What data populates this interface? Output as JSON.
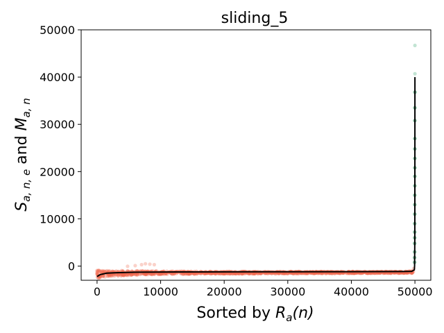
{
  "chart_data": {
    "type": "scatter",
    "title": "sliding_5",
    "xlabel": {
      "prefix": "Sorted by ",
      "R": "R",
      "sub": "a",
      "args": "(n)"
    },
    "ylabel": {
      "S": "S",
      "s_sub": "a, n, e",
      "and": " and ",
      "M": "M",
      "m_sub": "a, n"
    },
    "xlim": [
      -2500,
      52500
    ],
    "ylim": [
      -3000,
      50000
    ],
    "xticks": [
      0,
      10000,
      20000,
      30000,
      40000,
      50000
    ],
    "yticks": [
      0,
      10000,
      20000,
      30000,
      40000,
      50000
    ],
    "grid": false,
    "colors": {
      "band": "#f06a4f",
      "spike": "#2f8f5b",
      "spike_faint": "#a8d8c0",
      "line": "#000000"
    },
    "series": [
      {
        "kind": "scatter-band",
        "x": [
          0,
          1000,
          2000,
          4000,
          6000,
          8000,
          10000,
          15000,
          20000,
          30000,
          40000,
          48000,
          49500,
          49800
        ],
        "y_low": [
          -2600,
          -2400,
          -2200,
          -2000,
          -1900,
          -1800,
          -1750,
          -1700,
          -1650,
          -1600,
          -1550,
          -1500,
          -1500,
          -1500
        ],
        "y_high": [
          -800,
          -900,
          -900,
          -950,
          -1000,
          -1000,
          -1050,
          -1100,
          -1150,
          -1150,
          -1150,
          -1150,
          -1050,
          -500
        ]
      },
      {
        "kind": "scatter-outliers",
        "x": [
          4800,
          6000,
          7000,
          7600,
          8300,
          9000
        ],
        "y": [
          -50,
          100,
          300,
          500,
          400,
          300
        ]
      },
      {
        "kind": "scatter-spike",
        "x": [
          49950,
          49950,
          49960,
          49960,
          49970,
          49970,
          49970,
          49980,
          49980,
          49980,
          49985,
          49985,
          49990,
          49990,
          49990,
          49992,
          49995,
          49995,
          49997,
          49999,
          50000
        ],
        "y": [
          800,
          1800,
          3000,
          4800,
          6000,
          7200,
          9000,
          11000,
          13000,
          15000,
          17000,
          19000,
          20800,
          22800,
          24800,
          27000,
          30800,
          33500,
          36800,
          40700,
          46700
        ]
      },
      {
        "kind": "line",
        "x": [
          0,
          500,
          1500,
          3000,
          6000,
          10000,
          20000,
          30000,
          40000,
          48000,
          49500,
          49900,
          49950,
          49980,
          49990,
          49999
        ],
        "y": [
          -2200,
          -1800,
          -1500,
          -1400,
          -1300,
          -1250,
          -1220,
          -1200,
          -1180,
          -1150,
          -1100,
          -800,
          0,
          5000,
          15000,
          40000
        ]
      }
    ]
  }
}
